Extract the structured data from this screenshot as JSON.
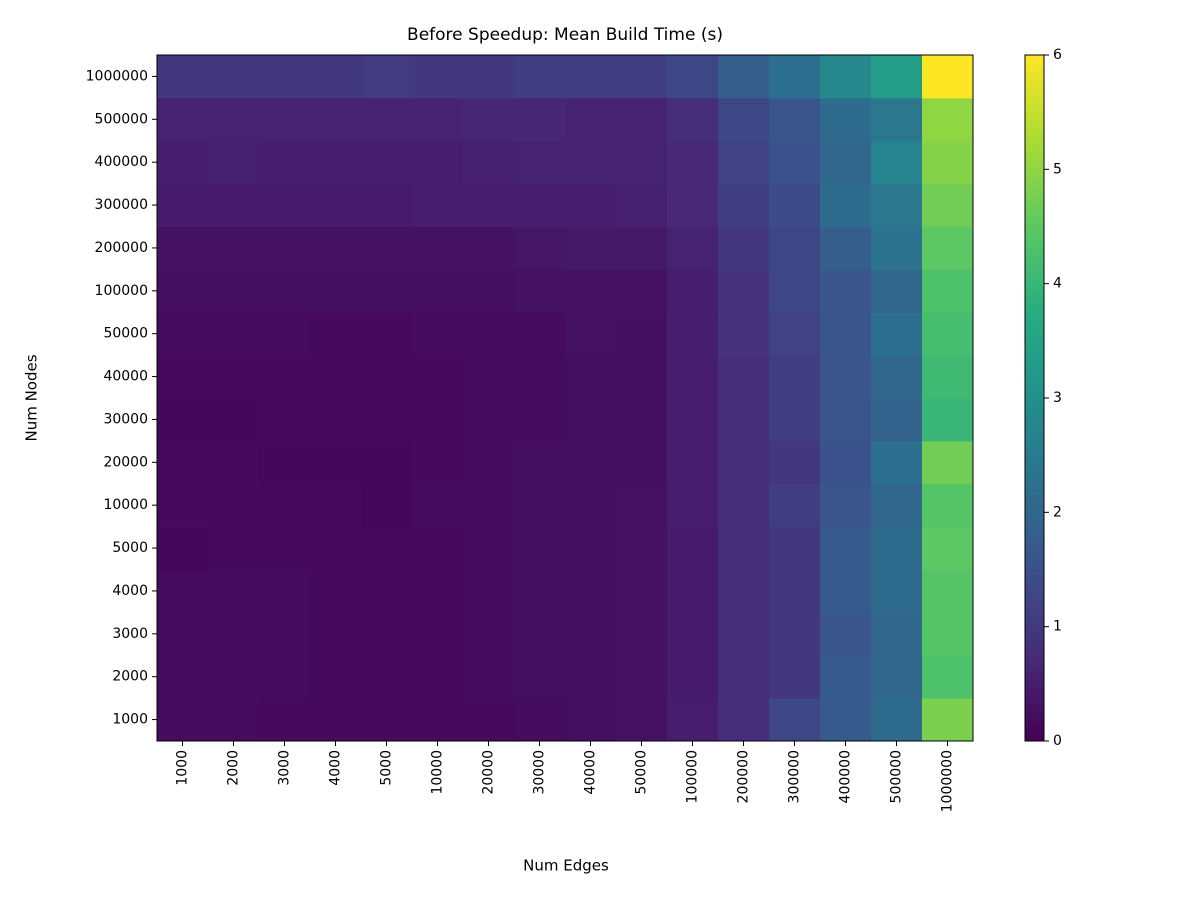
{
  "chart_data": {
    "type": "heatmap",
    "title": "Before Speedup: Mean Build Time (s)",
    "x_label": "Num Edges",
    "y_label": "Num Nodes",
    "x": [
      "1000",
      "2000",
      "3000",
      "4000",
      "5000",
      "10000",
      "20000",
      "30000",
      "40000",
      "50000",
      "100000",
      "200000",
      "300000",
      "400000",
      "500000",
      "1000000"
    ],
    "y": [
      "1000",
      "2000",
      "3000",
      "4000",
      "5000",
      "10000",
      "20000",
      "30000",
      "40000",
      "50000",
      "100000",
      "200000",
      "300000",
      "400000",
      "500000",
      "1000000"
    ],
    "z": [
      [
        0.2,
        0.2,
        0.15,
        0.15,
        0.15,
        0.15,
        0.15,
        0.2,
        0.25,
        0.3,
        0.5,
        0.8,
        1.3,
        1.7,
        2.1,
        4.8
      ],
      [
        0.2,
        0.2,
        0.2,
        0.15,
        0.15,
        0.15,
        0.2,
        0.25,
        0.25,
        0.3,
        0.45,
        0.8,
        1.0,
        1.7,
        2.0,
        4.3
      ],
      [
        0.2,
        0.2,
        0.2,
        0.15,
        0.15,
        0.15,
        0.2,
        0.25,
        0.25,
        0.3,
        0.45,
        0.8,
        1.0,
        1.6,
        2.0,
        4.4
      ],
      [
        0.2,
        0.2,
        0.2,
        0.15,
        0.15,
        0.15,
        0.2,
        0.25,
        0.25,
        0.3,
        0.45,
        0.8,
        1.0,
        1.7,
        2.1,
        4.4
      ],
      [
        0.1,
        0.15,
        0.15,
        0.15,
        0.15,
        0.15,
        0.2,
        0.25,
        0.25,
        0.3,
        0.45,
        0.8,
        1.0,
        1.7,
        2.1,
        4.5
      ],
      [
        0.15,
        0.15,
        0.15,
        0.15,
        0.1,
        0.2,
        0.2,
        0.25,
        0.25,
        0.3,
        0.5,
        0.8,
        1.1,
        1.6,
        2.0,
        4.4
      ],
      [
        0.15,
        0.15,
        0.1,
        0.1,
        0.1,
        0.15,
        0.2,
        0.25,
        0.25,
        0.25,
        0.5,
        0.8,
        1.0,
        1.5,
        2.2,
        4.7
      ],
      [
        0.1,
        0.1,
        0.15,
        0.15,
        0.15,
        0.15,
        0.2,
        0.2,
        0.25,
        0.25,
        0.5,
        0.8,
        1.1,
        1.6,
        1.9,
        4.0
      ],
      [
        0.15,
        0.15,
        0.15,
        0.15,
        0.15,
        0.15,
        0.2,
        0.2,
        0.25,
        0.25,
        0.5,
        0.8,
        1.1,
        1.6,
        2.0,
        4.1
      ],
      [
        0.2,
        0.2,
        0.2,
        0.15,
        0.15,
        0.2,
        0.2,
        0.2,
        0.3,
        0.25,
        0.5,
        0.9,
        1.2,
        1.6,
        2.2,
        4.2
      ],
      [
        0.25,
        0.25,
        0.25,
        0.25,
        0.25,
        0.25,
        0.25,
        0.3,
        0.3,
        0.3,
        0.5,
        0.9,
        1.3,
        1.6,
        2.0,
        4.3
      ],
      [
        0.3,
        0.3,
        0.3,
        0.3,
        0.3,
        0.3,
        0.3,
        0.35,
        0.4,
        0.4,
        0.6,
        1.0,
        1.3,
        1.8,
        2.3,
        4.5
      ],
      [
        0.45,
        0.45,
        0.45,
        0.45,
        0.45,
        0.5,
        0.5,
        0.5,
        0.5,
        0.55,
        0.7,
        1.1,
        1.4,
        2.1,
        2.4,
        4.7
      ],
      [
        0.5,
        0.55,
        0.5,
        0.5,
        0.5,
        0.5,
        0.55,
        0.6,
        0.6,
        0.6,
        0.7,
        1.2,
        1.5,
        2.0,
        2.7,
        4.9
      ],
      [
        0.6,
        0.6,
        0.6,
        0.6,
        0.6,
        0.6,
        0.65,
        0.65,
        0.6,
        0.6,
        0.8,
        1.3,
        1.6,
        2.1,
        2.4,
        5.0
      ],
      [
        1.0,
        1.0,
        1.0,
        1.0,
        1.05,
        1.0,
        1.0,
        1.1,
        1.1,
        1.1,
        1.3,
        1.8,
        2.2,
        2.8,
        3.3,
        6.0
      ]
    ],
    "zlim": [
      0,
      6
    ],
    "colorbar_ticks": [
      0,
      1,
      2,
      3,
      4,
      5,
      6
    ],
    "colormap": "viridis"
  }
}
